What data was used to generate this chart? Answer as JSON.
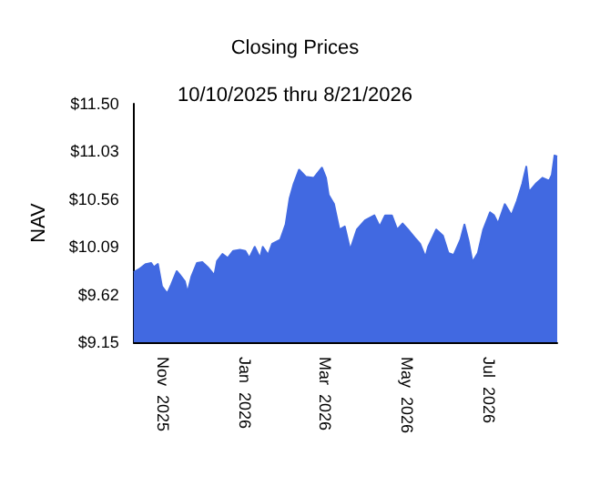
{
  "chart_data": {
    "type": "area",
    "title": "Closing Prices",
    "subtitle": "10/10/2025 thru 8/21/2026",
    "ylabel": "NAV",
    "x": [
      "2025-10-10",
      "2025-10-14",
      "2025-10-19",
      "2025-10-23",
      "2025-10-25",
      "2025-10-28",
      "2025-10-31",
      "2025-11-04",
      "2025-11-07",
      "2025-11-11",
      "2025-11-13",
      "2025-11-17",
      "2025-11-19",
      "2025-11-22",
      "2025-11-26",
      "2025-11-30",
      "2025-12-04",
      "2025-12-09",
      "2025-12-11",
      "2025-12-15",
      "2025-12-19",
      "2025-12-23",
      "2025-12-28",
      "2026-01-01",
      "2026-01-04",
      "2026-01-08",
      "2026-01-12",
      "2026-01-14",
      "2026-01-18",
      "2026-01-21",
      "2026-01-27",
      "2026-01-31",
      "2026-02-03",
      "2026-02-06",
      "2026-02-10",
      "2026-02-15",
      "2026-02-21",
      "2026-02-27",
      "2026-03-02",
      "2026-03-04",
      "2026-03-08",
      "2026-03-12",
      "2026-03-16",
      "2026-03-20",
      "2026-03-25",
      "2026-03-31",
      "2026-04-07",
      "2026-04-11",
      "2026-04-15",
      "2026-04-20",
      "2026-04-24",
      "2026-04-28",
      "2026-05-02",
      "2026-05-07",
      "2026-05-11",
      "2026-05-15",
      "2026-05-17",
      "2026-05-23",
      "2026-05-28",
      "2026-06-01",
      "2026-06-05",
      "2026-06-10",
      "2026-06-13",
      "2026-06-16",
      "2026-06-19",
      "2026-06-23",
      "2026-06-27",
      "2026-07-02",
      "2026-07-05",
      "2026-07-08",
      "2026-07-13",
      "2026-07-18",
      "2026-07-22",
      "2026-07-26",
      "2026-07-29",
      "2026-07-31",
      "2026-08-05",
      "2026-08-10",
      "2026-08-15",
      "2026-08-17",
      "2026-08-19",
      "2026-08-21"
    ],
    "series": [
      {
        "color": "#4169e1",
        "values": [
          9.84,
          9.87,
          9.92,
          9.93,
          9.89,
          9.92,
          9.7,
          9.63,
          9.72,
          9.85,
          9.82,
          9.75,
          9.64,
          9.8,
          9.93,
          9.94,
          9.89,
          9.81,
          9.95,
          10.02,
          9.98,
          10.05,
          10.06,
          10.05,
          9.98,
          10.09,
          9.98,
          10.09,
          10.01,
          10.12,
          10.16,
          10.31,
          10.57,
          10.71,
          10.85,
          10.78,
          10.77,
          10.87,
          10.77,
          10.6,
          10.51,
          10.26,
          10.29,
          10.06,
          10.26,
          10.35,
          10.4,
          10.29,
          10.4,
          10.4,
          10.26,
          10.32,
          10.26,
          10.18,
          10.12,
          9.99,
          10.09,
          10.26,
          10.2,
          10.03,
          10.01,
          10.16,
          10.31,
          10.15,
          9.94,
          10.03,
          10.26,
          10.43,
          10.4,
          10.32,
          10.51,
          10.4,
          10.54,
          10.71,
          10.88,
          10.63,
          10.71,
          10.77,
          10.74,
          10.8,
          10.99,
          10.98
        ]
      }
    ],
    "xlim": [
      "2025-10-10",
      "2026-08-21"
    ],
    "xticks": [
      {
        "value": "2025-11-01",
        "label": "Nov 2025"
      },
      {
        "value": "2026-01-01",
        "label": "Jan 2026"
      },
      {
        "value": "2026-03-01",
        "label": "Mar 2026"
      },
      {
        "value": "2026-05-01",
        "label": "May 2026"
      },
      {
        "value": "2026-07-01",
        "label": "Jul 2026"
      }
    ],
    "ylim": [
      9.15,
      11.5
    ],
    "yticks": [
      {
        "value": 9.15,
        "label": "$9.15"
      },
      {
        "value": 9.62,
        "label": "$9.62"
      },
      {
        "value": 10.09,
        "label": "$10.09"
      },
      {
        "value": 10.56,
        "label": "$10.56"
      },
      {
        "value": 11.03,
        "label": "$11.03"
      },
      {
        "value": 11.5,
        "label": "$11.50"
      }
    ],
    "grid": false
  }
}
